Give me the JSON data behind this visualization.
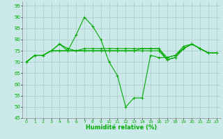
{
  "xlabel": "Humidité relative (%)",
  "xlim": [
    -0.5,
    23.5
  ],
  "ylim": [
    45,
    97
  ],
  "yticks": [
    45,
    50,
    55,
    60,
    65,
    70,
    75,
    80,
    85,
    90,
    95
  ],
  "xticks": [
    0,
    1,
    2,
    3,
    4,
    5,
    6,
    7,
    8,
    9,
    10,
    11,
    12,
    13,
    14,
    15,
    16,
    17,
    18,
    19,
    20,
    21,
    22,
    23
  ],
  "background_color": "#cce9e9",
  "grid_color": "#aacccc",
  "line_color": "#00aa00",
  "line_width": 0.8,
  "marker": "+",
  "marker_size": 3,
  "marker_edge_width": 0.7,
  "series": [
    [
      70,
      73,
      73,
      75,
      78,
      75,
      82,
      90,
      86,
      80,
      70,
      64,
      50,
      54,
      54,
      73,
      72,
      72,
      73,
      76,
      78,
      76,
      74,
      74
    ],
    [
      70,
      73,
      73,
      75,
      78,
      76,
      75,
      76,
      76,
      76,
      76,
      76,
      76,
      76,
      76,
      76,
      76,
      72,
      73,
      77,
      78,
      76,
      74,
      74
    ],
    [
      70,
      73,
      73,
      75,
      75,
      75,
      75,
      75,
      75,
      75,
      75,
      75,
      75,
      75,
      76,
      76,
      76,
      71,
      72,
      76,
      78,
      76,
      74,
      74
    ],
    [
      70,
      73,
      73,
      75,
      75,
      75,
      75,
      75,
      75,
      75,
      75,
      75,
      75,
      75,
      75,
      75,
      75,
      71,
      72,
      76,
      78,
      76,
      74,
      74
    ]
  ]
}
